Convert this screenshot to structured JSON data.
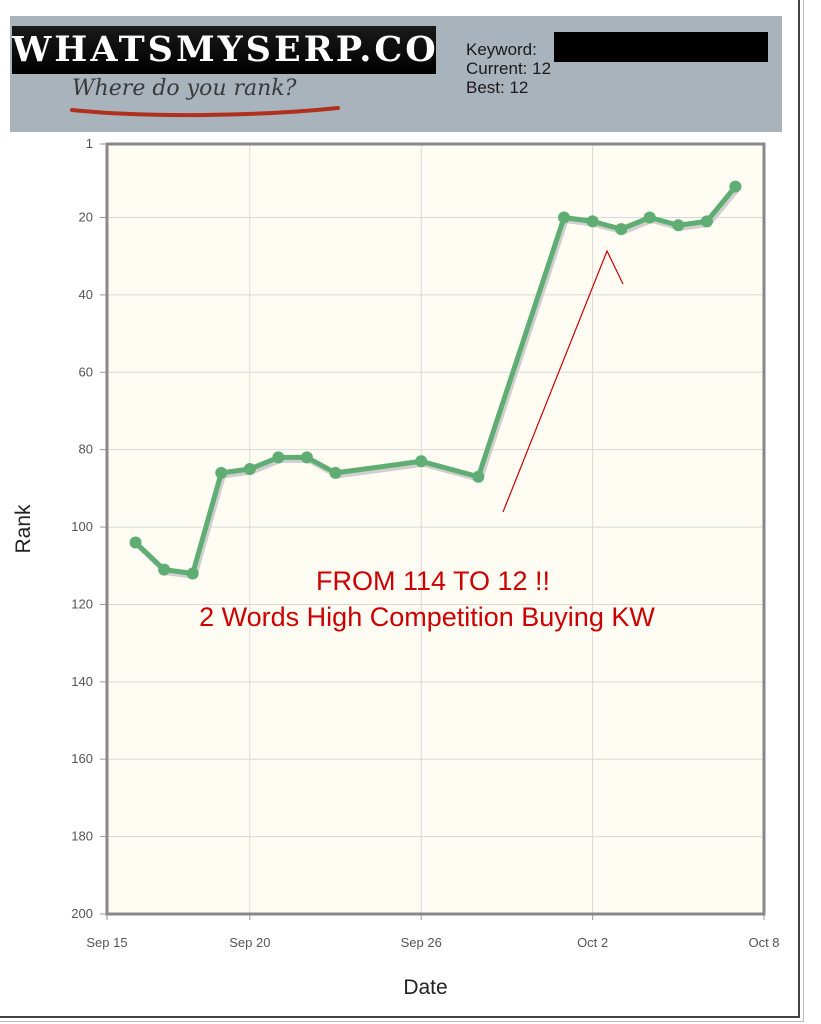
{
  "header": {
    "logo_text": "WHATSMYSERP.COM",
    "tagline": "Where do you rank?",
    "keyword_label": "Keyword:",
    "current_label": "Current: 12",
    "best_label": "Best: 12"
  },
  "colors": {
    "header_bg": "#a9b3bc",
    "plot_bg": "#fffdf3",
    "series_line": "#5fad73",
    "annotation": "#cc0000",
    "tagline_swoosh": "#b03020"
  },
  "chart_data": {
    "type": "line",
    "title": "",
    "xlabel": "Date",
    "ylabel": "Rank",
    "y_inverted": true,
    "ylim": [
      200,
      1
    ],
    "xlim": [
      "2012-09-15",
      "2012-10-08"
    ],
    "x_ticks": [
      "Sep 15",
      "Sep 20",
      "Sep 26",
      "Oct 2",
      "Oct 8"
    ],
    "x_tick_dates": [
      "2012-09-15",
      "2012-09-20",
      "2012-09-26",
      "2012-10-02",
      "2012-10-08"
    ],
    "y_ticks": [
      1,
      20,
      40,
      60,
      80,
      100,
      120,
      140,
      160,
      180,
      200
    ],
    "grid": true,
    "series": [
      {
        "x": [
          "2012-09-16",
          "2012-09-17",
          "2012-09-18",
          "2012-09-19",
          "2012-09-20",
          "2012-09-21",
          "2012-09-22",
          "2012-09-23",
          "2012-09-26",
          "2012-09-28",
          "2012-10-01",
          "2012-10-02",
          "2012-10-03",
          "2012-10-04",
          "2012-10-05",
          "2012-10-06",
          "2012-10-07"
        ],
        "values": [
          104,
          111,
          112,
          86,
          85,
          82,
          82,
          86,
          83,
          87,
          20,
          21,
          23,
          20,
          22,
          21,
          12
        ]
      }
    ],
    "annotations": [
      "FROM 114 TO 12 !!",
      "2 Words High Competition Buying KW"
    ]
  }
}
